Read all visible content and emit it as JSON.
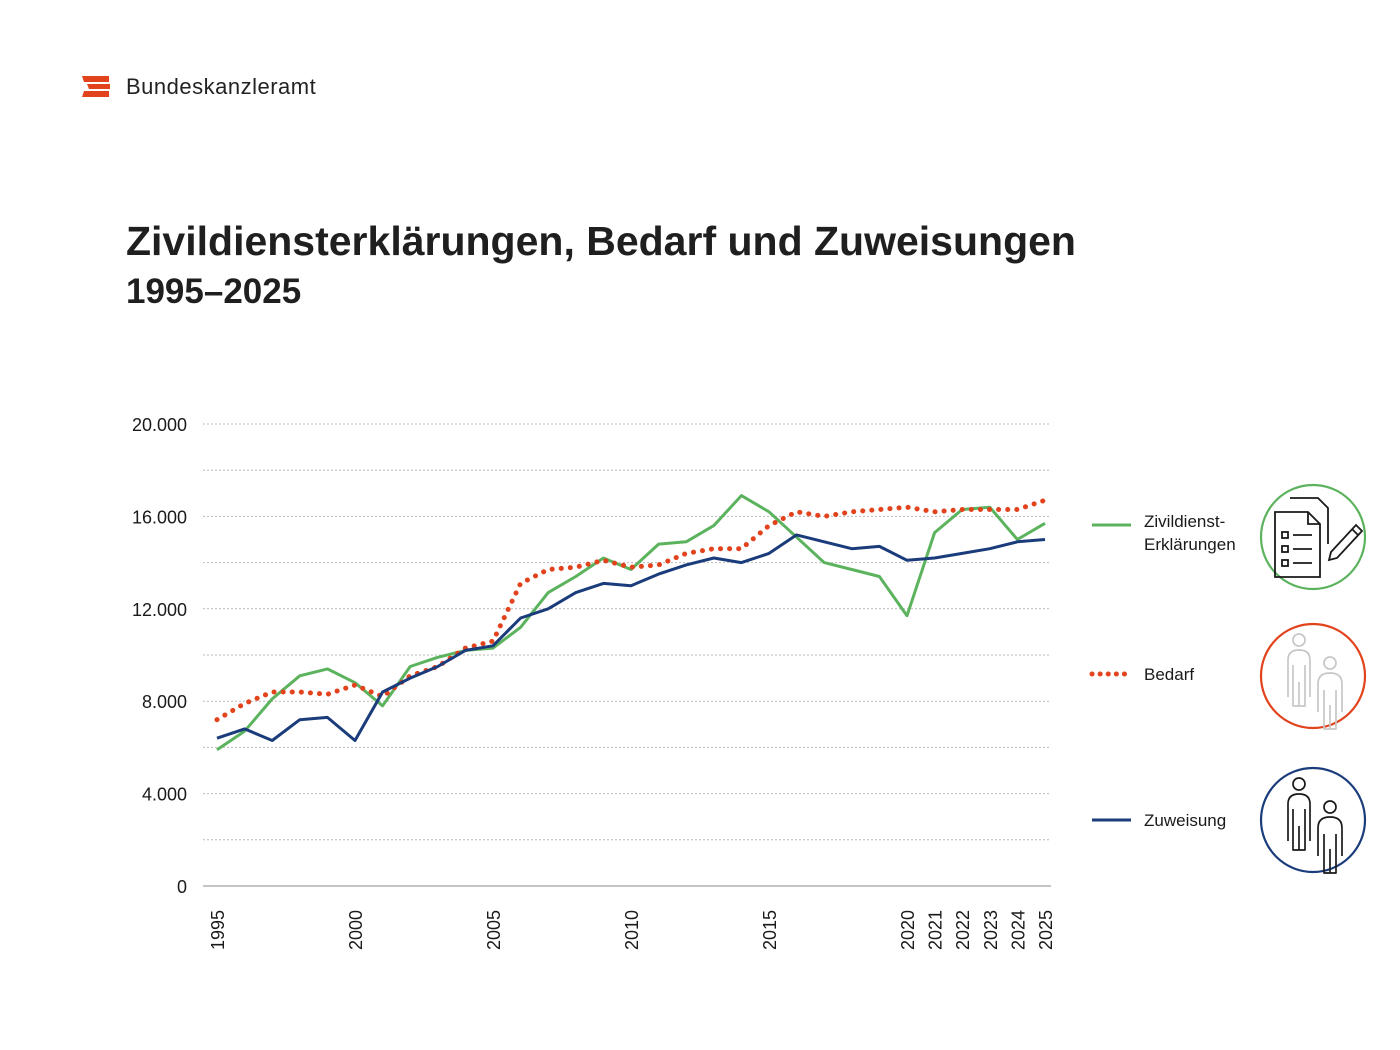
{
  "header": {
    "brand": "Bundeskanzleramt"
  },
  "chart_data": {
    "type": "line",
    "title": "Zivildiensterklärungen, Bedarf und Zuweisungen",
    "subtitle": "1995–2025",
    "xlabel": "",
    "ylabel": "",
    "ylim": [
      0,
      20000
    ],
    "yticks": [
      0,
      4000,
      8000,
      12000,
      16000,
      20000
    ],
    "ytick_labels": [
      "0",
      "4.000",
      "8.000",
      "12.000",
      "16.000",
      "20.000"
    ],
    "grid": true,
    "legend_position": "right",
    "x": [
      1995,
      1996,
      1997,
      1998,
      1999,
      2000,
      2001,
      2002,
      2003,
      2004,
      2005,
      2006,
      2007,
      2008,
      2009,
      2010,
      2011,
      2012,
      2013,
      2014,
      2015,
      2016,
      2017,
      2018,
      2019,
      2020,
      2021,
      2022,
      2023,
      2024,
      2025
    ],
    "xtick_labels": [
      "1995",
      "2000",
      "2005",
      "2010",
      "2015",
      "2020",
      "2021",
      "2022",
      "2023",
      "2024",
      "2025"
    ],
    "series": [
      {
        "name": "Zivildienst-Erklärungen",
        "legend_lines": [
          "Zivildienst-",
          "Erklärungen"
        ],
        "color": "#5cb35e",
        "style": "solid",
        "icon": "document-checklist-icon",
        "values": [
          5900,
          6700,
          8100,
          9100,
          9400,
          8800,
          7800,
          9500,
          9900,
          10200,
          10300,
          11200,
          12700,
          13400,
          14200,
          13700,
          14800,
          14900,
          15600,
          16900,
          16200,
          15100,
          14000,
          13700,
          13400,
          11700,
          15300,
          16300,
          16400,
          15000,
          15700
        ]
      },
      {
        "name": "Bedarf",
        "legend_lines": [
          "Bedarf"
        ],
        "color": "#e2421c",
        "style": "dotted",
        "icon": "persons-icon",
        "values": [
          7200,
          7900,
          8400,
          8400,
          8300,
          8700,
          8200,
          9100,
          9500,
          10300,
          10600,
          13100,
          13700,
          13800,
          14100,
          13800,
          13900,
          14400,
          14600,
          14600,
          15600,
          16200,
          16000,
          16200,
          16300,
          16400,
          16200,
          16300,
          16300,
          16300,
          16700
        ]
      },
      {
        "name": "Zuweisung",
        "legend_lines": [
          "Zuweisung"
        ],
        "color": "#1b3c7b",
        "style": "solid",
        "icon": "persons-icon",
        "values": [
          6400,
          6800,
          6300,
          7200,
          7300,
          6300,
          8400,
          9000,
          9500,
          10200,
          10400,
          11600,
          12000,
          12700,
          13100,
          13000,
          13500,
          13900,
          14200,
          14000,
          14400,
          15200,
          14900,
          14600,
          14700,
          14100,
          14200,
          14400,
          14600,
          14900,
          15000
        ]
      }
    ]
  }
}
